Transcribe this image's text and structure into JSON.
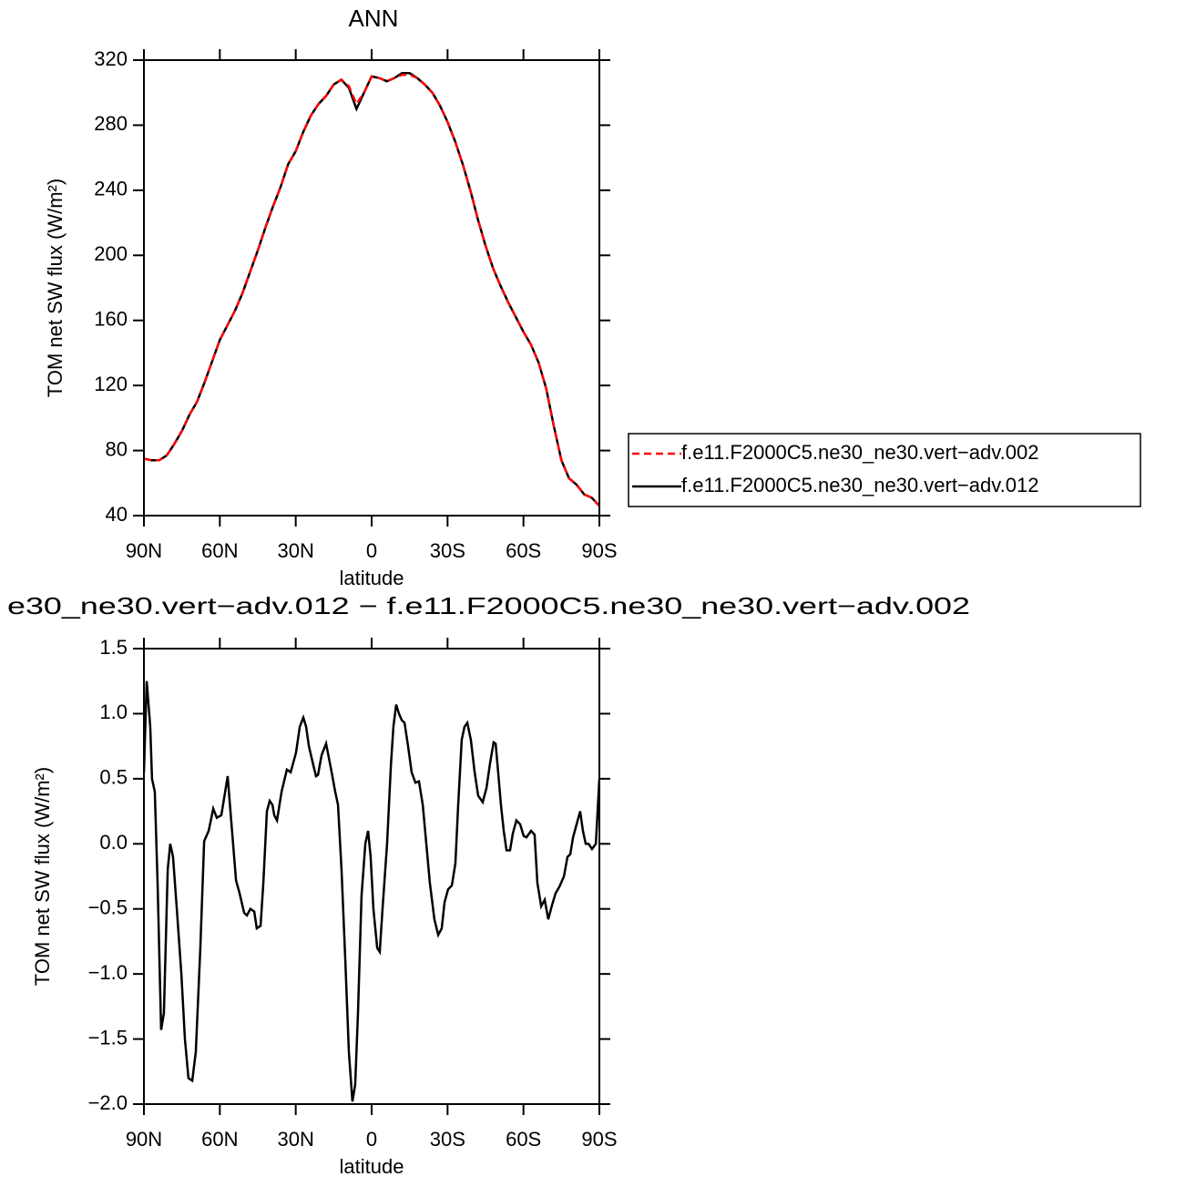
{
  "chart_data": [
    {
      "type": "line",
      "title": "ANN",
      "xlabel": "latitude",
      "ylabel": "TOM net SW flux (W/m²)",
      "xlim": [
        90,
        -90
      ],
      "xticks": [
        {
          "value": 90,
          "label": "90N"
        },
        {
          "value": 60,
          "label": "60N"
        },
        {
          "value": 30,
          "label": "30N"
        },
        0,
        {
          "value": -30,
          "label": "30S"
        },
        {
          "value": -60,
          "label": "60S"
        },
        {
          "value": -90,
          "label": "90S"
        }
      ],
      "ylim": [
        40,
        320
      ],
      "yticks": [
        40,
        80,
        120,
        160,
        200,
        240,
        280,
        320
      ],
      "legend": "right",
      "x": [
        90,
        87,
        84,
        81,
        78,
        75,
        72,
        69,
        66,
        63,
        60,
        57,
        54,
        51,
        48,
        45,
        42,
        39,
        36,
        33,
        30,
        27,
        24,
        21,
        18,
        15,
        12,
        9,
        6,
        3,
        0,
        -3,
        -6,
        -9,
        -12,
        -15,
        -18,
        -21,
        -24,
        -27,
        -30,
        -33,
        -36,
        -39,
        -42,
        -45,
        -48,
        -51,
        -54,
        -57,
        -60,
        -63,
        -66,
        -69,
        -72,
        -75,
        -78,
        -81,
        -84,
        -87,
        -90
      ],
      "series": [
        {
          "name": "f.e11.F2000C5.ne30_ne30.vert−adv.002",
          "color": "#ff0000",
          "line_style": "dashed",
          "values": [
            75,
            74,
            74,
            77,
            84,
            92,
            102,
            110,
            122,
            135,
            148,
            157,
            166,
            177,
            190,
            203,
            217,
            230,
            242,
            256,
            264,
            276,
            286,
            293,
            298,
            305,
            308,
            304,
            293,
            300,
            310,
            309,
            307,
            309,
            311,
            311,
            309,
            305,
            300,
            292,
            282,
            270,
            256,
            240,
            222,
            206,
            192,
            181,
            171,
            162,
            153,
            145,
            134,
            118,
            95,
            74,
            63,
            59,
            53,
            51,
            46
          ]
        },
        {
          "name": "f.e11.F2000C5.ne30_ne30.vert−adv.012",
          "color": "#000000",
          "line_style": "solid",
          "values": [
            75,
            74,
            74,
            77,
            84,
            92,
            102,
            110,
            122,
            135,
            148,
            157,
            166,
            177,
            190,
            203,
            217,
            230,
            242,
            256,
            264,
            276,
            286,
            293,
            298,
            305,
            308,
            303,
            290,
            300,
            310,
            309,
            307,
            309,
            312,
            312,
            309,
            305,
            300,
            292,
            282,
            270,
            256,
            240,
            222,
            206,
            192,
            181,
            171,
            162,
            153,
            145,
            134,
            118,
            95,
            74,
            63,
            59,
            53,
            51,
            46
          ]
        }
      ]
    },
    {
      "type": "line",
      "title": "e30_ne30.vert−adv.012 − f.e11.F2000C5.ne30_ne30.vert−adv.002",
      "xlabel": "latitude",
      "ylabel": "TOM net SW flux (W/m²)",
      "xlim": [
        90,
        -90
      ],
      "xticks": [
        {
          "value": 90,
          "label": "90N"
        },
        {
          "value": 60,
          "label": "60N"
        },
        {
          "value": 30,
          "label": "30N"
        },
        0,
        {
          "value": -30,
          "label": "30S"
        },
        {
          "value": -60,
          "label": "60S"
        },
        {
          "value": -90,
          "label": "90S"
        }
      ],
      "ylim": [
        -2,
        1.5
      ],
      "yticks": [
        {
          "value": -2,
          "label": "−2.0"
        },
        {
          "value": -1.5,
          "label": "−1.5"
        },
        {
          "value": -1,
          "label": "−1.0"
        },
        {
          "value": -0.5,
          "label": "−0.5"
        },
        {
          "value": 0,
          "label": "0.0"
        },
        0.5,
        {
          "value": 1,
          "label": "1.0"
        },
        1.5
      ],
      "color": "#000000",
      "x": [
        90,
        88.9,
        87.5,
        86.8,
        85.7,
        84.6,
        83.2,
        82.1,
        80.6,
        79.6,
        78.5,
        77.0,
        75.2,
        73.8,
        72.4,
        70.9,
        69.5,
        67.7,
        66.2,
        64.4,
        62.6,
        61.2,
        59.4,
        57.9,
        56.9,
        55.8,
        53.6,
        52.2,
        50.4,
        49.3,
        47.9,
        46.4,
        45.4,
        43.9,
        42.8,
        41.4,
        40.3,
        39.2,
        38.5,
        37.4,
        35.6,
        33.5,
        32.0,
        29.9,
        28.4,
        27.0,
        25.9,
        24.8,
        23.0,
        22.0,
        21.2,
        19.8,
        18.0,
        15.8,
        14.4,
        13.3,
        11.9,
        10.4,
        9.0,
        7.6,
        6.5,
        5.4,
        4.0,
        2.5,
        1.4,
        0.4,
        -0.7,
        -2.2,
        -3.2,
        -4.3,
        -6.1,
        -7.6,
        -8.6,
        -9.7,
        -10.8,
        -11.9,
        -13.0,
        -14.4,
        -15.8,
        -17.3,
        -18.7,
        -20.2,
        -21.6,
        -23.0,
        -24.8,
        -26.3,
        -27.7,
        -28.8,
        -30.2,
        -31.7,
        -33.1,
        -34.2,
        -35.6,
        -36.7,
        -37.8,
        -39.2,
        -40.7,
        -42.1,
        -43.9,
        -45.4,
        -46.8,
        -48.2,
        -49.0,
        -50.0,
        -51.1,
        -52.2,
        -53.3,
        -54.7,
        -55.8,
        -57.2,
        -58.7,
        -60.1,
        -61.2,
        -63.0,
        -64.4,
        -65.5,
        -67.0,
        -68.4,
        -69.8,
        -71.3,
        -72.7,
        -74.2,
        -76.0,
        -77.4,
        -78.5,
        -79.6,
        -81.0,
        -82.4,
        -83.5,
        -84.6,
        -85.7,
        -87.1,
        -88.6,
        -90
      ],
      "values": [
        0.55,
        1.25,
        0.9,
        0.5,
        0.4,
        -0.3,
        -1.43,
        -1.3,
        -0.2,
        0.0,
        -0.1,
        -0.5,
        -1.0,
        -1.5,
        -1.8,
        -1.82,
        -1.6,
        -0.8,
        0.02,
        0.1,
        0.27,
        0.2,
        0.22,
        0.4,
        0.52,
        0.25,
        -0.28,
        -0.38,
        -0.53,
        -0.55,
        -0.5,
        -0.52,
        -0.65,
        -0.63,
        -0.3,
        0.25,
        0.33,
        0.3,
        0.22,
        0.18,
        0.4,
        0.57,
        0.55,
        0.7,
        0.9,
        0.97,
        0.9,
        0.75,
        0.6,
        0.52,
        0.53,
        0.68,
        0.77,
        0.55,
        0.4,
        0.3,
        -0.2,
        -0.9,
        -1.6,
        -1.98,
        -1.85,
        -1.3,
        -0.4,
        0.0,
        0.1,
        -0.1,
        -0.5,
        -0.8,
        -0.83,
        -0.5,
        0.0,
        0.6,
        0.9,
        1.07,
        1.0,
        0.95,
        0.93,
        0.75,
        0.55,
        0.47,
        0.48,
        0.3,
        0.0,
        -0.3,
        -0.58,
        -0.7,
        -0.65,
        -0.45,
        -0.35,
        -0.32,
        -0.15,
        0.3,
        0.8,
        0.9,
        0.93,
        0.8,
        0.55,
        0.37,
        0.32,
        0.43,
        0.62,
        0.78,
        0.77,
        0.55,
        0.3,
        0.1,
        -0.05,
        -0.05,
        0.08,
        0.18,
        0.15,
        0.06,
        0.05,
        0.1,
        0.07,
        -0.3,
        -0.48,
        -0.43,
        -0.58,
        -0.47,
        -0.38,
        -0.33,
        -0.25,
        -0.1,
        -0.08,
        0.05,
        0.15,
        0.25,
        0.1,
        0.0,
        0.0,
        -0.04,
        0.0,
        0.5
      ]
    }
  ]
}
